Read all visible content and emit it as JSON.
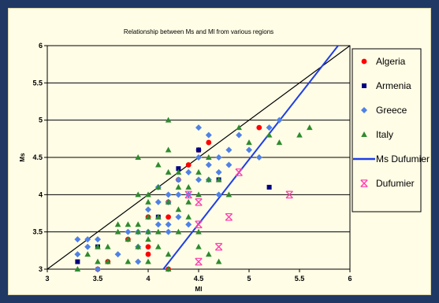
{
  "chart_data": {
    "type": "scatter",
    "title": "Relationship between Ms and Ml from various regions",
    "xlabel": "Ml",
    "ylabel": "Ms",
    "xlim": [
      3,
      6
    ],
    "ylim": [
      3,
      6
    ],
    "x_ticks": [
      "3",
      "3.5",
      "4",
      "4.5",
      "5",
      "5.5",
      "6"
    ],
    "y_ticks": [
      "3",
      "3.5",
      "4",
      "4.5",
      "5",
      "5.5",
      "6"
    ],
    "grid": "horizontal",
    "legend_position": "right",
    "series": [
      {
        "name": "Algeria",
        "marker": "circle",
        "color": "#ff0000",
        "points": [
          [
            3.5,
            3.0
          ],
          [
            3.6,
            3.1
          ],
          [
            3.8,
            3.4
          ],
          [
            4.0,
            3.7
          ],
          [
            4.0,
            3.3
          ],
          [
            4.0,
            3.2
          ],
          [
            4.2,
            3.7
          ],
          [
            4.2,
            3.9
          ],
          [
            4.2,
            3.0
          ],
          [
            4.3,
            4.2
          ],
          [
            4.4,
            4.4
          ],
          [
            4.5,
            4.6
          ],
          [
            4.6,
            4.7
          ],
          [
            5.1,
            4.9
          ]
        ]
      },
      {
        "name": "Armenia",
        "marker": "square",
        "color": "#000080",
        "points": [
          [
            3.3,
            3.1
          ],
          [
            3.5,
            3.3
          ],
          [
            4.1,
            3.7
          ],
          [
            4.3,
            4.35
          ],
          [
            4.5,
            4.6
          ],
          [
            4.7,
            4.2
          ],
          [
            5.2,
            4.1
          ]
        ]
      },
      {
        "name": "Greece",
        "marker": "diamond",
        "color": "#4f81e6",
        "points": [
          [
            3.3,
            3.4
          ],
          [
            3.4,
            3.4
          ],
          [
            3.5,
            3.4
          ],
          [
            3.3,
            3.2
          ],
          [
            3.4,
            3.3
          ],
          [
            3.5,
            3.0
          ],
          [
            3.7,
            3.2
          ],
          [
            3.8,
            3.5
          ],
          [
            3.9,
            3.5
          ],
          [
            3.9,
            3.1
          ],
          [
            3.9,
            3.3
          ],
          [
            4.0,
            3.5
          ],
          [
            4.0,
            3.8
          ],
          [
            4.1,
            3.6
          ],
          [
            4.1,
            4.1
          ],
          [
            4.1,
            3.9
          ],
          [
            4.2,
            3.9
          ],
          [
            4.2,
            3.5
          ],
          [
            4.2,
            3.6
          ],
          [
            4.2,
            4.0
          ],
          [
            4.3,
            4.2
          ],
          [
            4.3,
            4.0
          ],
          [
            4.3,
            3.7
          ],
          [
            4.4,
            4.3
          ],
          [
            4.4,
            4.0
          ],
          [
            4.4,
            3.6
          ],
          [
            4.5,
            4.9
          ],
          [
            4.5,
            4.5
          ],
          [
            4.5,
            4.2
          ],
          [
            4.6,
            4.8
          ],
          [
            4.6,
            4.4
          ],
          [
            4.6,
            4.2
          ],
          [
            4.7,
            4.5
          ],
          [
            4.7,
            4.3
          ],
          [
            4.7,
            4.0
          ],
          [
            4.8,
            4.6
          ],
          [
            4.8,
            4.4
          ],
          [
            4.9,
            4.8
          ],
          [
            5.0,
            4.6
          ],
          [
            5.1,
            4.5
          ],
          [
            5.2,
            4.9
          ],
          [
            5.3,
            5.0
          ]
        ]
      },
      {
        "name": "Italy",
        "marker": "triangle",
        "color": "#2e8b2e",
        "points": [
          [
            3.3,
            3.0
          ],
          [
            3.4,
            3.2
          ],
          [
            3.5,
            3.3
          ],
          [
            3.5,
            3.1
          ],
          [
            3.6,
            3.1
          ],
          [
            3.6,
            3.3
          ],
          [
            3.7,
            3.5
          ],
          [
            3.7,
            3.6
          ],
          [
            3.8,
            3.4
          ],
          [
            3.8,
            3.6
          ],
          [
            3.8,
            3.1
          ],
          [
            3.9,
            3.6
          ],
          [
            3.9,
            4.0
          ],
          [
            3.9,
            4.5
          ],
          [
            3.9,
            3.5
          ],
          [
            3.9,
            3.3
          ],
          [
            4.0,
            3.1
          ],
          [
            4.0,
            3.9
          ],
          [
            4.0,
            4.0
          ],
          [
            4.0,
            3.7
          ],
          [
            4.0,
            3.4
          ],
          [
            4.0,
            3.5
          ],
          [
            4.1,
            4.1
          ],
          [
            4.1,
            4.4
          ],
          [
            4.1,
            3.5
          ],
          [
            4.1,
            3.3
          ],
          [
            4.1,
            3.7
          ],
          [
            4.2,
            3.2
          ],
          [
            4.2,
            3.0
          ],
          [
            4.2,
            3.9
          ],
          [
            4.2,
            4.3
          ],
          [
            4.2,
            4.6
          ],
          [
            4.2,
            5.0
          ],
          [
            4.3,
            3.8
          ],
          [
            4.3,
            3.5
          ],
          [
            4.3,
            4.1
          ],
          [
            4.3,
            4.3
          ],
          [
            4.4,
            3.7
          ],
          [
            4.4,
            3.9
          ],
          [
            4.4,
            4.1
          ],
          [
            4.5,
            4.3
          ],
          [
            4.5,
            4.0
          ],
          [
            4.5,
            3.5
          ],
          [
            4.5,
            3.3
          ],
          [
            4.6,
            4.5
          ],
          [
            4.6,
            4.2
          ],
          [
            4.7,
            4.2
          ],
          [
            4.7,
            3.1
          ],
          [
            4.8,
            4.0
          ],
          [
            4.9,
            4.9
          ],
          [
            5.0,
            4.7
          ],
          [
            5.2,
            4.8
          ],
          [
            5.3,
            4.7
          ],
          [
            5.5,
            4.8
          ],
          [
            5.6,
            4.9
          ],
          [
            4.6,
            3.2
          ]
        ]
      },
      {
        "name": "Dufumier",
        "marker": "asterisk",
        "color": "#ff3fb0",
        "points": [
          [
            4.4,
            4.0
          ],
          [
            4.5,
            3.9
          ],
          [
            4.5,
            3.6
          ],
          [
            4.5,
            3.1
          ],
          [
            4.7,
            3.3
          ],
          [
            4.8,
            3.7
          ],
          [
            4.9,
            4.3
          ],
          [
            5.4,
            4.0
          ]
        ]
      }
    ],
    "lines": [
      {
        "name": "1:1 line",
        "color": "#000000",
        "from": [
          3.0,
          3.0
        ],
        "to": [
          6.0,
          6.0
        ]
      },
      {
        "name": "Ms Dufumier",
        "color": "#1f3de6",
        "from": [
          4.15,
          3.0
        ],
        "to": [
          5.9,
          6.03
        ]
      }
    ],
    "legend": [
      {
        "label": "Algeria",
        "marker": "circle",
        "color": "#ff0000"
      },
      {
        "label": "Armenia",
        "marker": "square",
        "color": "#000080"
      },
      {
        "label": "Greece",
        "marker": "diamond",
        "color": "#4f81e6"
      },
      {
        "label": "Italy",
        "marker": "triangle",
        "color": "#2e8b2e"
      },
      {
        "label": "Ms Dufumier",
        "marker": "line",
        "color": "#1f3de6"
      },
      {
        "label": "Dufumier",
        "marker": "asterisk",
        "color": "#ff3fb0"
      }
    ]
  }
}
